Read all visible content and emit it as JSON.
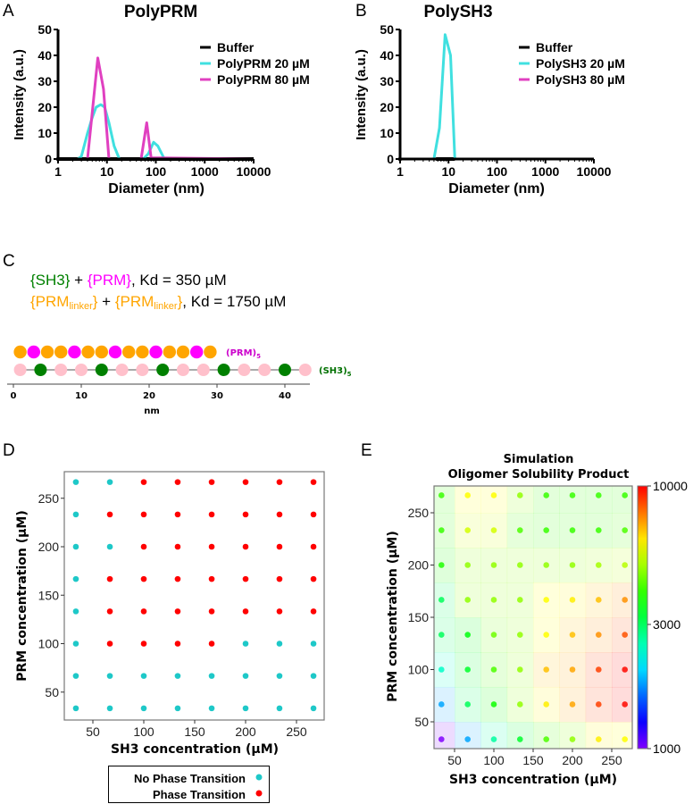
{
  "panels": {
    "A": {
      "label": "A"
    },
    "B": {
      "label": "B"
    },
    "C": {
      "label": "C",
      "line1": {
        "sh3": "{SH3}",
        "plus": " + ",
        "prm": "{PRM}",
        "kd": ", Kd = 350 µM"
      },
      "line2": {
        "prm_open": "{PRM",
        "sub": "linker",
        "prm_close": "}",
        "plus": " + ",
        "kd": ", Kd = 1750 µM"
      },
      "prm_chain_label": "(PRM)",
      "prm_chain_sub": "5",
      "sh3_chain_label": "(SH3)",
      "sh3_chain_sub": "5",
      "prm_beads": [
        "O",
        "M",
        "O",
        "O",
        "M",
        "O",
        "O",
        "M",
        "O",
        "O",
        "M",
        "O",
        "O",
        "M",
        "O"
      ],
      "sh3_beads": [
        "P",
        "G",
        "P",
        "P",
        "G",
        "P",
        "P",
        "G",
        "P",
        "P",
        "G",
        "P",
        "P",
        "G",
        "P"
      ],
      "axis_ticks": [
        0,
        10,
        20,
        30,
        40
      ],
      "axis_label": "nm",
      "colors": {
        "orange": "#ffa500",
        "magenta": "#ff00ff",
        "pink": "#ffc0cb",
        "green": "#008000"
      }
    },
    "D": {
      "label": "D"
    },
    "E": {
      "label": "E"
    }
  },
  "chart_data": [
    {
      "id": "A",
      "type": "line",
      "title": "PolyPRM",
      "xlabel": "Diameter (nm)",
      "ylabel": "Intensity (a.u.)",
      "xscale": "log",
      "xlim": [
        1,
        10000
      ],
      "ylim": [
        0,
        50
      ],
      "xticks": [
        "1",
        "10",
        "100",
        "1000",
        "10000"
      ],
      "yticks": [
        "0",
        "10",
        "20",
        "30",
        "40",
        "50"
      ],
      "legend_position": "top-right",
      "series": [
        {
          "name": "Buffer",
          "color": "#000000",
          "x": [
            1,
            10000
          ],
          "y": [
            0,
            0
          ]
        },
        {
          "name": "PolyPRM 20 µM",
          "color": "#40e0e0",
          "x": [
            1,
            2.5,
            3,
            4,
            5,
            6,
            7.5,
            9,
            11,
            14,
            18,
            55,
            70,
            90,
            110,
            150,
            10000
          ],
          "y": [
            0,
            0,
            1,
            10,
            16,
            20,
            21,
            20,
            14,
            5,
            0,
            0,
            2,
            6.5,
            5,
            0,
            0
          ]
        },
        {
          "name": "PolyPRM 80 µM",
          "color": "#e040c0",
          "x": [
            1,
            4,
            6.5,
            8.5,
            11,
            50,
            65,
            80,
            10000
          ],
          "y": [
            0,
            0,
            39,
            27,
            0,
            0,
            14,
            0.5,
            0
          ]
        }
      ]
    },
    {
      "id": "B",
      "type": "line",
      "title": "PolySH3",
      "xlabel": "Diameter (nm)",
      "ylabel": "Intensity (a.u.)",
      "xscale": "log",
      "xlim": [
        1,
        10000
      ],
      "ylim": [
        0,
        50
      ],
      "xticks": [
        "1",
        "10",
        "100",
        "1000",
        "10000"
      ],
      "yticks": [
        "0",
        "10",
        "20",
        "30",
        "40",
        "50"
      ],
      "legend_position": "top-right",
      "series": [
        {
          "name": "Buffer",
          "color": "#000000",
          "x": [
            5.5,
            13.5
          ],
          "y": [
            0,
            0
          ]
        },
        {
          "name": "PolySH3 20 µM",
          "color": "#40e0e0",
          "x": [
            1,
            5,
            6.5,
            8.5,
            11,
            13.5,
            10000
          ],
          "y": [
            0,
            0,
            12,
            48,
            40,
            0,
            0
          ]
        },
        {
          "name": "PolySH3 80 µM",
          "color": "#e040c0",
          "x": [
            13.5,
            15
          ],
          "y": [
            0,
            0
          ]
        }
      ]
    },
    {
      "id": "D",
      "type": "scatter",
      "xlabel": "SH3 concentration (µM)",
      "ylabel": "PRM concentration (µM)",
      "xlim": [
        25,
        275
      ],
      "ylim": [
        25,
        275
      ],
      "xticks": [
        50,
        100,
        150,
        200,
        250
      ],
      "yticks": [
        50,
        100,
        150,
        200,
        250
      ],
      "x": [
        33.3,
        66.7,
        100,
        133.3,
        166.7,
        200,
        233.3,
        266.7
      ],
      "y": [
        266.7,
        233.3,
        200,
        166.7,
        133.3,
        100,
        66.7,
        33.3
      ],
      "phase_transition": [
        [
          0,
          0,
          1,
          1,
          1,
          1,
          1,
          1
        ],
        [
          0,
          1,
          1,
          1,
          1,
          1,
          1,
          1
        ],
        [
          0,
          0,
          1,
          1,
          1,
          1,
          1,
          1
        ],
        [
          0,
          1,
          1,
          1,
          1,
          1,
          1,
          1
        ],
        [
          0,
          1,
          1,
          1,
          1,
          1,
          1,
          1
        ],
        [
          0,
          1,
          1,
          1,
          1,
          0,
          0,
          0
        ],
        [
          0,
          0,
          0,
          0,
          0,
          0,
          0,
          0
        ],
        [
          0,
          0,
          0,
          0,
          0,
          0,
          0,
          0
        ]
      ],
      "legend": [
        {
          "name": "No Phase Transition",
          "color": "#1ec8c8"
        },
        {
          "name": "Phase Transition",
          "color": "#ff0000"
        }
      ],
      "legend_position": "bottom-outside"
    },
    {
      "id": "E",
      "type": "heatmap",
      "title_line1": "Simulation",
      "title_line2": "Oligomer Solubility Product",
      "xlabel": "SH3 concentration (µM)",
      "ylabel": "PRM concentration (µM)",
      "xlim": [
        25,
        275
      ],
      "ylim": [
        25,
        275
      ],
      "xticks": [
        50,
        100,
        150,
        200,
        250
      ],
      "yticks": [
        50,
        100,
        150,
        200,
        250
      ],
      "x": [
        33.3,
        66.7,
        100,
        133.3,
        166.7,
        200,
        233.3,
        266.7
      ],
      "y": [
        266.7,
        233.3,
        200,
        166.7,
        133.3,
        100,
        66.7,
        33.3
      ],
      "values": [
        [
          4000,
          6000,
          6000,
          4800,
          4000,
          4000,
          4000,
          4000
        ],
        [
          4000,
          5500,
          5500,
          4200,
          4000,
          4000,
          4000,
          4200
        ],
        [
          3800,
          4800,
          4800,
          4800,
          4800,
          4800,
          5000,
          5200
        ],
        [
          3000,
          4800,
          4800,
          4800,
          6000,
          6200,
          6800,
          7500
        ],
        [
          3000,
          3500,
          4500,
          4800,
          6000,
          6800,
          7500,
          8500
        ],
        [
          2400,
          3300,
          4200,
          4800,
          6800,
          7200,
          8800,
          9800
        ],
        [
          1800,
          3000,
          3700,
          4800,
          6200,
          7200,
          8800,
          9800
        ],
        [
          1000,
          1800,
          2600,
          3300,
          4200,
          4800,
          6200,
          6000
        ]
      ],
      "colorbar": {
        "scale": "log",
        "range": [
          1000,
          10000
        ],
        "ticks": [
          "10000",
          "3000",
          "1000"
        ],
        "colormap": "rainbow"
      }
    }
  ]
}
